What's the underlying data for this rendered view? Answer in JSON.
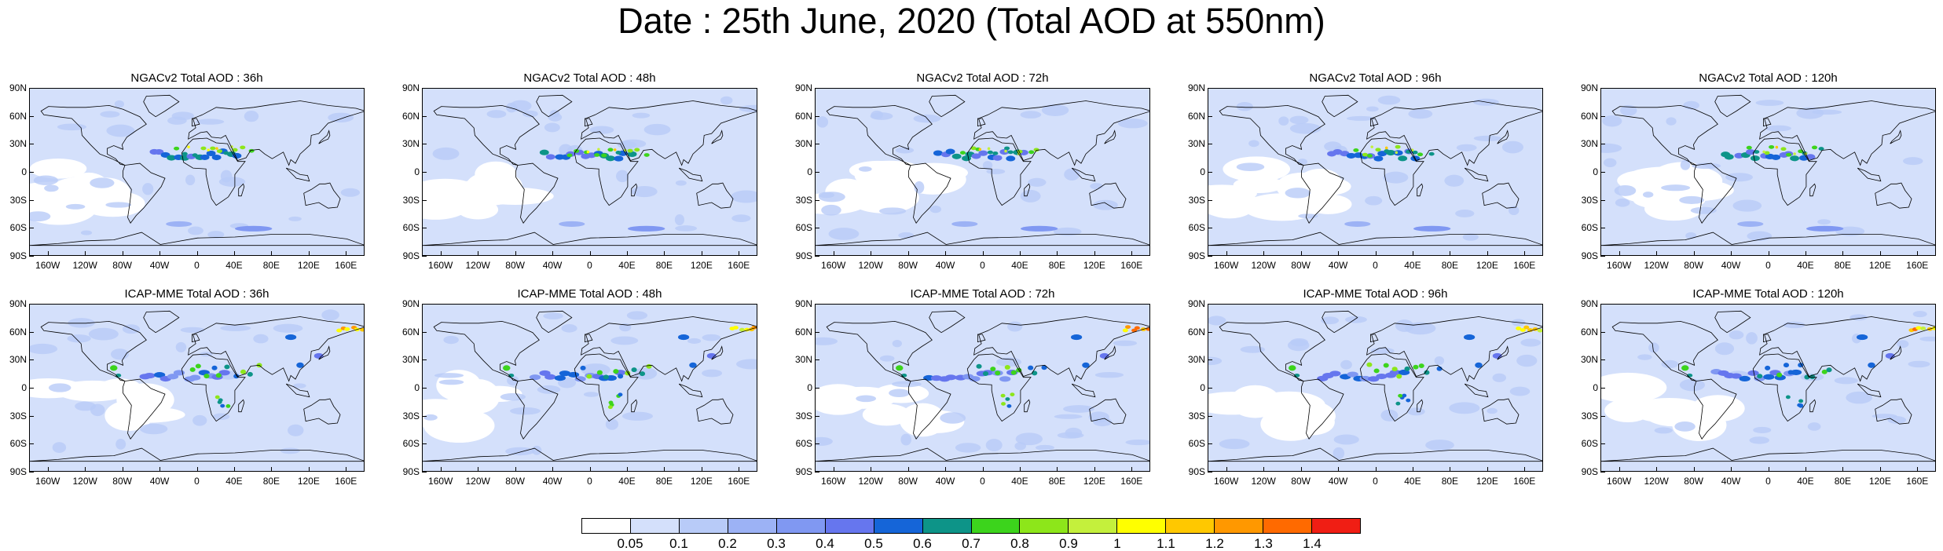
{
  "title": "Date : 25th June, 2020 (Total AOD at 550nm)",
  "panels": [
    {
      "title": "NGACv2 Total AOD : 36h",
      "model": "NGACv2",
      "forecast_hour": 36
    },
    {
      "title": "NGACv2 Total AOD : 48h",
      "model": "NGACv2",
      "forecast_hour": 48
    },
    {
      "title": "NGACv2 Total AOD : 72h",
      "model": "NGACv2",
      "forecast_hour": 72
    },
    {
      "title": "NGACv2 Total AOD : 96h",
      "model": "NGACv2",
      "forecast_hour": 96
    },
    {
      "title": "NGACv2 Total AOD : 120h",
      "model": "NGACv2",
      "forecast_hour": 120
    },
    {
      "title": "ICAP-MME Total AOD : 36h",
      "model": "ICAP-MME",
      "forecast_hour": 36
    },
    {
      "title": "ICAP-MME Total AOD : 48h",
      "model": "ICAP-MME",
      "forecast_hour": 48
    },
    {
      "title": "ICAP-MME Total AOD : 72h",
      "model": "ICAP-MME",
      "forecast_hour": 72
    },
    {
      "title": "ICAP-MME Total AOD : 96h",
      "model": "ICAP-MME",
      "forecast_hour": 96
    },
    {
      "title": "ICAP-MME Total AOD : 120h",
      "model": "ICAP-MME",
      "forecast_hour": 120
    }
  ],
  "lat_ticks": [
    "90N",
    "60N",
    "30N",
    "0",
    "30S",
    "60S",
    "90S"
  ],
  "lon_ticks": [
    "160W",
    "120W",
    "80W",
    "40W",
    "0",
    "40E",
    "80E",
    "120E",
    "160E"
  ],
  "lon_tick_values": [
    -160,
    -120,
    -80,
    -40,
    0,
    40,
    80,
    120,
    160
  ],
  "colorbar": {
    "labels": [
      "0.05",
      "0.1",
      "0.2",
      "0.3",
      "0.4",
      "0.5",
      "0.6",
      "0.7",
      "0.8",
      "0.9",
      "1",
      "1.1",
      "1.2",
      "1.3",
      "1.4"
    ],
    "colors": [
      "#ffffff",
      "#d4e0fb",
      "#b8cbf8",
      "#9cb2f5",
      "#8098f2",
      "#6676ee",
      "#1565d8",
      "#0d9488",
      "#3cd41c",
      "#8de61a",
      "#c4f03c",
      "#ffff00",
      "#ffc800",
      "#ff9800",
      "#ff6a00",
      "#f01e14"
    ]
  }
}
